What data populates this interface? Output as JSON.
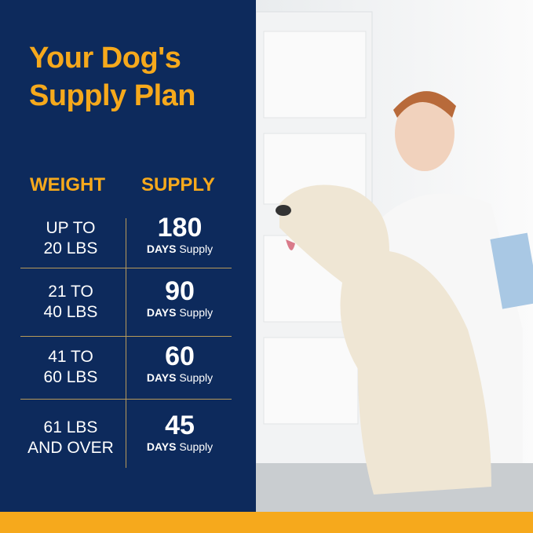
{
  "title_line1": "Your Dog's",
  "title_line2": "Supply Plan",
  "headers": {
    "weight": "WEIGHT",
    "supply": "SUPPLY"
  },
  "rows": [
    {
      "w1": "UP TO",
      "w2": "20 LBS",
      "days": "180",
      "unit_bold": "DAYS",
      "unit": "Supply"
    },
    {
      "w1": "21 TO",
      "w2": "40 LBS",
      "days": "90",
      "unit_bold": "DAYS",
      "unit": "Supply"
    },
    {
      "w1": "41 TO",
      "w2": "60 LBS",
      "days": "60",
      "unit_bold": "DAYS",
      "unit": "Supply"
    },
    {
      "w1": "61 LBS",
      "w2": "AND OVER",
      "days": "45",
      "unit_bold": "DAYS",
      "unit": "Supply"
    }
  ],
  "colors": {
    "navy": "#0d2a5c",
    "gold": "#f6a91c"
  }
}
